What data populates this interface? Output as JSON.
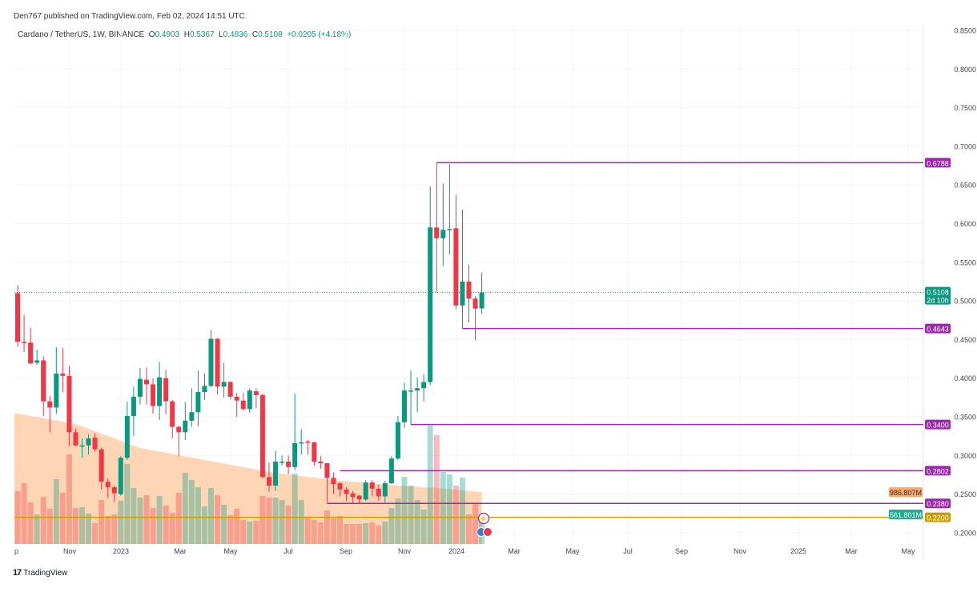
{
  "publish_line": "Den767 published on TradingView.com, Feb 02, 2024 14:51 UTC",
  "legend": {
    "symbol": "Cardano / TetherUS, 1W, BINANCE",
    "o_label": "O",
    "o": "0.4903",
    "h_label": "H",
    "h": "0.5367",
    "l_label": "L",
    "l": "0.4836",
    "c_label": "C",
    "c": "0.5108",
    "change": "+0.0205 (+4.18%)"
  },
  "colors": {
    "up": "#089981",
    "down": "#f23645",
    "level": "#9c27b0",
    "support": "#c9a000",
    "volume_ma": "#ff9800",
    "vol_ma_area": "#ffcfa8"
  },
  "price_axis": {
    "ticks": [
      "0.8500",
      "0.8000",
      "0.7500",
      "0.7000",
      "0.6500",
      "0.6000",
      "0.5500",
      "0.5000",
      "0.4500",
      "0.4000",
      "0.3500",
      "0.3000",
      "0.2500",
      "0.2000"
    ],
    "range": [
      0.2,
      0.85
    ]
  },
  "time_axis": {
    "labels": [
      "p",
      "Nov",
      "2023",
      "Mar",
      "May",
      "Jul",
      "Sep",
      "Nov",
      "2024",
      "Mar",
      "May",
      "Jul",
      "Sep",
      "Nov",
      "2025",
      "Mar",
      "May"
    ]
  },
  "current_price": {
    "value": "0.5108",
    "countdown": "2d 10h"
  },
  "volume_labels": {
    "ma": "986.807M",
    "current": "561.801M"
  },
  "levels": [
    {
      "price": 0.6788,
      "label": "0.6788",
      "from_candle": 66,
      "kind": "level"
    },
    {
      "price": 0.4643,
      "label": "0.4643",
      "from_candle": 70,
      "kind": "level"
    },
    {
      "price": 0.34,
      "label": "0.3400",
      "from_candle": 62,
      "kind": "level"
    },
    {
      "price": 0.2802,
      "label": "0.2802",
      "from_candle": 51,
      "kind": "level"
    },
    {
      "price": 0.238,
      "label": "0.2380",
      "from_candle": 49,
      "kind": "level"
    },
    {
      "price": 0.22,
      "label": "0.2200",
      "from_candle": 0,
      "kind": "support"
    }
  ],
  "chart_data": {
    "type": "candlestick",
    "interval": "1W",
    "ohlc": [
      [
        0.51,
        0.52,
        0.441,
        0.447
      ],
      [
        0.447,
        0.482,
        0.434,
        0.446
      ],
      [
        0.446,
        0.465,
        0.418,
        0.419
      ],
      [
        0.42,
        0.437,
        0.417,
        0.423
      ],
      [
        0.423,
        0.428,
        0.351,
        0.37
      ],
      [
        0.37,
        0.377,
        0.33,
        0.362
      ],
      [
        0.362,
        0.44,
        0.354,
        0.406
      ],
      [
        0.406,
        0.439,
        0.382,
        0.403
      ],
      [
        0.403,
        0.416,
        0.312,
        0.33
      ],
      [
        0.33,
        0.335,
        0.312,
        0.313
      ],
      [
        0.313,
        0.322,
        0.297,
        0.313
      ],
      [
        0.313,
        0.327,
        0.301,
        0.322
      ],
      [
        0.323,
        0.329,
        0.305,
        0.308
      ],
      [
        0.308,
        0.31,
        0.256,
        0.266
      ],
      [
        0.266,
        0.27,
        0.245,
        0.259
      ],
      [
        0.259,
        0.261,
        0.24,
        0.251
      ],
      [
        0.25,
        0.299,
        0.248,
        0.297
      ],
      [
        0.297,
        0.37,
        0.294,
        0.351
      ],
      [
        0.351,
        0.389,
        0.325,
        0.376
      ],
      [
        0.376,
        0.413,
        0.366,
        0.399
      ],
      [
        0.398,
        0.414,
        0.366,
        0.392
      ],
      [
        0.392,
        0.4,
        0.354,
        0.364
      ],
      [
        0.364,
        0.421,
        0.346,
        0.401
      ],
      [
        0.4,
        0.411,
        0.353,
        0.37
      ],
      [
        0.37,
        0.372,
        0.322,
        0.337
      ],
      [
        0.337,
        0.338,
        0.299,
        0.33
      ],
      [
        0.33,
        0.369,
        0.32,
        0.345
      ],
      [
        0.345,
        0.387,
        0.337,
        0.356
      ],
      [
        0.356,
        0.41,
        0.338,
        0.382
      ],
      [
        0.382,
        0.406,
        0.372,
        0.39
      ],
      [
        0.39,
        0.462,
        0.388,
        0.451
      ],
      [
        0.451,
        0.452,
        0.379,
        0.389
      ],
      [
        0.389,
        0.42,
        0.375,
        0.395
      ],
      [
        0.395,
        0.396,
        0.373,
        0.376
      ],
      [
        0.376,
        0.381,
        0.35,
        0.371
      ],
      [
        0.371,
        0.381,
        0.358,
        0.36
      ],
      [
        0.36,
        0.387,
        0.355,
        0.384
      ],
      [
        0.383,
        0.387,
        0.361,
        0.378
      ],
      [
        0.378,
        0.38,
        0.27,
        0.272
      ],
      [
        0.272,
        0.291,
        0.253,
        0.261
      ],
      [
        0.261,
        0.306,
        0.254,
        0.292
      ],
      [
        0.292,
        0.3,
        0.287,
        0.292
      ],
      [
        0.292,
        0.3,
        0.276,
        0.285
      ],
      [
        0.285,
        0.38,
        0.281,
        0.316
      ],
      [
        0.316,
        0.334,
        0.301,
        0.317
      ],
      [
        0.318,
        0.32,
        0.301,
        0.317
      ],
      [
        0.317,
        0.318,
        0.287,
        0.292
      ],
      [
        0.292,
        0.299,
        0.283,
        0.29
      ],
      [
        0.29,
        0.29,
        0.239,
        0.271
      ],
      [
        0.271,
        0.278,
        0.25,
        0.263
      ],
      [
        0.264,
        0.265,
        0.247,
        0.256
      ],
      [
        0.256,
        0.259,
        0.241,
        0.25
      ],
      [
        0.251,
        0.254,
        0.239,
        0.246
      ],
      [
        0.248,
        0.249,
        0.237,
        0.243
      ],
      [
        0.243,
        0.268,
        0.241,
        0.265
      ],
      [
        0.265,
        0.268,
        0.247,
        0.257
      ],
      [
        0.257,
        0.262,
        0.241,
        0.247
      ],
      [
        0.247,
        0.267,
        0.239,
        0.264
      ],
      [
        0.264,
        0.299,
        0.263,
        0.296
      ],
      [
        0.296,
        0.351,
        0.294,
        0.343
      ],
      [
        0.343,
        0.394,
        0.336,
        0.384
      ],
      [
        0.384,
        0.41,
        0.34,
        0.384
      ],
      [
        0.384,
        0.401,
        0.356,
        0.387
      ],
      [
        0.387,
        0.405,
        0.37,
        0.395
      ],
      [
        0.395,
        0.648,
        0.391,
        0.595
      ],
      [
        0.595,
        0.6788,
        0.511,
        0.581
      ],
      [
        0.581,
        0.652,
        0.545,
        0.592
      ],
      [
        0.592,
        0.677,
        0.56,
        0.593
      ],
      [
        0.594,
        0.637,
        0.489,
        0.494
      ],
      [
        0.494,
        0.618,
        0.4643,
        0.525
      ],
      [
        0.525,
        0.547,
        0.472,
        0.503
      ],
      [
        0.503,
        0.506,
        0.449,
        0.49
      ],
      [
        0.4903,
        0.5367,
        0.4836,
        0.5108
      ]
    ],
    "volume_m": [
      1003,
      1155,
      790,
      562,
      897,
      669,
      1231,
      973,
      1702,
      684,
      699,
      578,
      395,
      836,
      532,
      562,
      821,
      1520,
      1064,
      882,
      927,
      684,
      912,
      730,
      593,
      973,
      1353,
      1216,
      1079,
      714,
      1064,
      927,
      745,
      547,
      669,
      456,
      426,
      441,
      912,
      882,
      882,
      836,
      730,
      1338,
      836,
      502,
      456,
      410,
      638,
      486,
      532,
      380,
      380,
      380,
      395,
      410,
      350,
      426,
      684,
      866,
      1277,
      1110,
      836,
      654,
      2250,
      2067,
      1368,
      1322,
      1110,
      1262,
      562,
      775,
      561.801
    ],
    "volume_ma_m": [
      [
        1,
        2478
      ],
      [
        10,
        2280
      ],
      [
        20,
        1824
      ],
      [
        30,
        1596
      ],
      [
        40,
        1368
      ],
      [
        50,
        1216
      ],
      [
        60,
        1110
      ],
      [
        66,
        1064
      ],
      [
        73,
        986.807
      ]
    ]
  },
  "footer": {
    "brand": "TradingView"
  }
}
